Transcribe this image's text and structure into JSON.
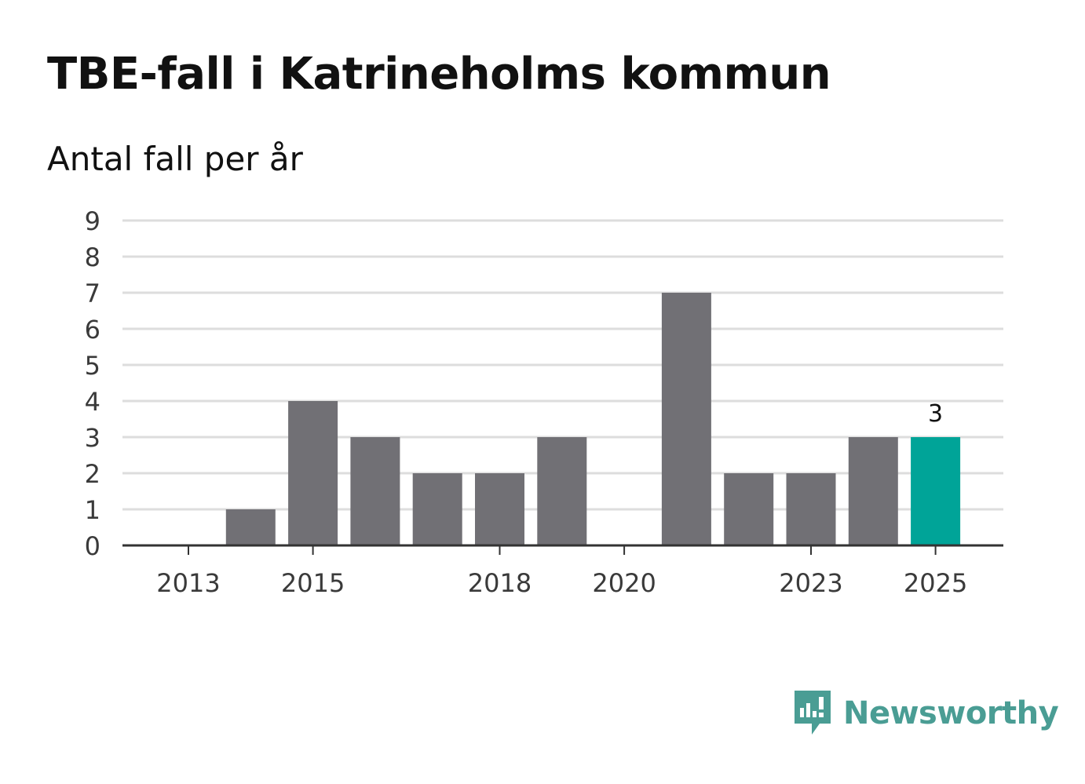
{
  "title": "TBE-fall i Katrineholms kommun",
  "subtitle": "Antal fall per år",
  "brand": {
    "name": "Newsworthy",
    "icon": "newsworthy-logo-icon",
    "color": "#4a9d94"
  },
  "colors": {
    "bar": "#717075",
    "highlight": "#00a498",
    "grid": "#dddddd",
    "axis": "#333333"
  },
  "chart_data": {
    "type": "bar",
    "categories": [
      "2013",
      "2014",
      "2015",
      "2016",
      "2017",
      "2018",
      "2019",
      "2020",
      "2021",
      "2022",
      "2023",
      "2024",
      "2025"
    ],
    "values": [
      0,
      1,
      4,
      3,
      2,
      2,
      3,
      0,
      7,
      2,
      2,
      3,
      3
    ],
    "x_tick_labels": [
      "2013",
      "2015",
      "2018",
      "2020",
      "2023",
      "2025"
    ],
    "y_ticks": [
      0,
      1,
      2,
      3,
      4,
      5,
      6,
      7,
      8,
      9
    ],
    "ylim": [
      0,
      9
    ],
    "grid": true,
    "highlight_category": "2025",
    "data_labels": [
      {
        "category": "2025",
        "text": "3"
      }
    ],
    "title": "TBE-fall i Katrineholms kommun",
    "subtitle": "Antal fall per år",
    "xlabel": "",
    "ylabel": ""
  }
}
